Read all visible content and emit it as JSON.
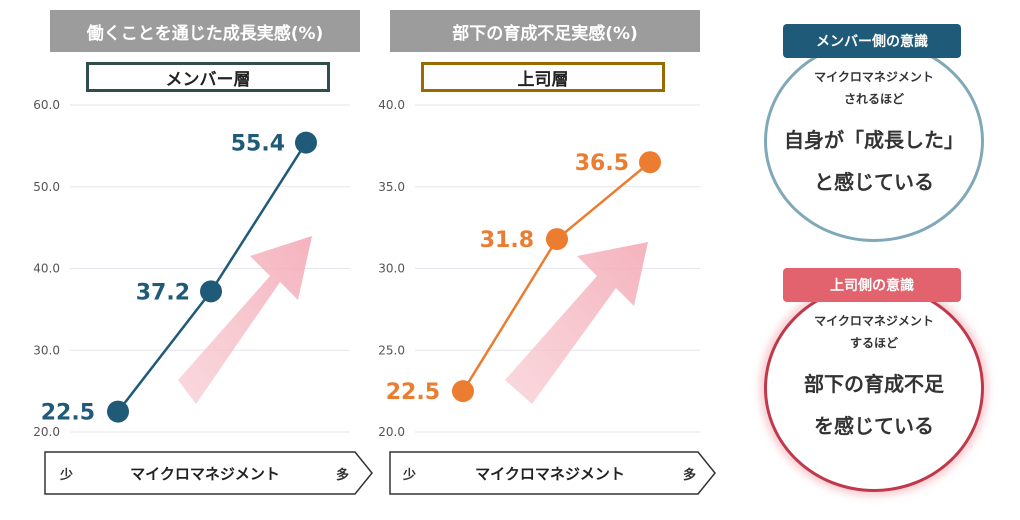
{
  "chart_data": [
    {
      "type": "line",
      "title": "働くことを通じた成長実感(%)",
      "subtitle": "メンバー層",
      "xlabel": "マイクロマネジメント",
      "xlabel_low": "少",
      "xlabel_high": "多",
      "ylim": [
        20,
        60
      ],
      "yticks": [
        "20.0",
        "30.0",
        "40.0",
        "50.0",
        "60.0"
      ],
      "values": [
        22.5,
        37.2,
        55.4
      ],
      "labels": [
        "22.5",
        "37.2",
        "55.4"
      ],
      "color": "#1f5a78"
    },
    {
      "type": "line",
      "title": "部下の育成不足実感(%)",
      "subtitle": "上司層",
      "xlabel": "マイクロマネジメント",
      "xlabel_low": "少",
      "xlabel_high": "多",
      "ylim": [
        20,
        40
      ],
      "yticks": [
        "20.0",
        "25.0",
        "30.0",
        "35.0",
        "40.0"
      ],
      "values": [
        22.5,
        31.8,
        36.5
      ],
      "labels": [
        "22.5",
        "31.8",
        "36.5"
      ],
      "color": "#ec7c30"
    }
  ],
  "insights": {
    "member": {
      "badge": "メンバー側の意識",
      "small_line1": "マイクロマネジメント",
      "small_line2": "されるほど",
      "big_line1": "自身が「成長した」",
      "big_line2": "と感じている",
      "color": "#1f5a78"
    },
    "boss": {
      "badge": "上司側の意識",
      "small_line1": "マイクロマネジメント",
      "small_line2": "するほど",
      "big_line1": "部下の育成不足",
      "big_line2": "を感じている",
      "color": "#e2636d"
    }
  }
}
